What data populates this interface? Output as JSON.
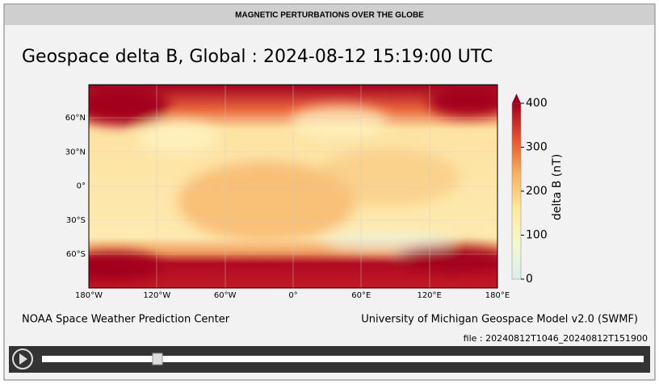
{
  "header": {
    "title": "MAGNETIC PERTURBATIONS OVER THE GLOBE"
  },
  "plot": {
    "title": "Geospace delta B, Global : 2024-08-12  15:19:00 UTC",
    "lon_labels": [
      "180°W",
      "120°W",
      "60°W",
      "0°",
      "60°E",
      "120°E",
      "180°E"
    ],
    "lat_labels": [
      "60°N",
      "30°N",
      "0°",
      "30°S",
      "60°S"
    ],
    "colorbar": {
      "label": "delta B (nT)",
      "lim": [
        0,
        400
      ],
      "ticks": [
        0,
        100,
        200,
        300,
        400
      ]
    }
  },
  "footer": {
    "left": "NOAA Space Weather Prediction Center",
    "right": "University of Michigan Geospace Model v2.0 (SWMF)",
    "file": "file : 20240812T1046_20240812T151900"
  }
}
